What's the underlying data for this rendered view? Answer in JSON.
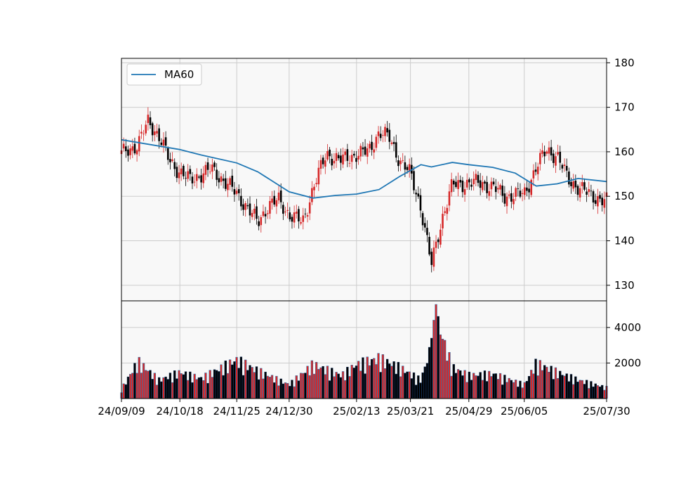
{
  "chart_data": {
    "type": "candlestick",
    "legend": {
      "label": "MA60",
      "placement": "upper-left"
    },
    "grid": true,
    "price_axis": {
      "side": "right",
      "ylim": [
        126.5,
        181
      ],
      "ticks": [
        130,
        140,
        150,
        160,
        170,
        180
      ],
      "tick_labels": [
        "130",
        "140",
        "150",
        "160",
        "170",
        "180"
      ]
    },
    "volume_axis": {
      "side": "right",
      "ylim": [
        0,
        5500
      ],
      "ticks": [
        2000,
        4000
      ],
      "tick_labels": [
        "2000",
        "4000"
      ]
    },
    "x_tick_labels": [
      "24/09/09",
      "24/10/18",
      "24/11/25",
      "24/12/30",
      "25/02/13",
      "25/03/21",
      "25/04/29",
      "25/06/05",
      "25/07/30"
    ],
    "close_series": [
      [
        "24/09/09",
        159.5
      ],
      [
        "24/09/13",
        160.5
      ],
      [
        "24/09/20",
        161.5
      ],
      [
        "24/09/27",
        167.0
      ],
      [
        "24/10/04",
        163.5
      ],
      [
        "24/10/11",
        158.0
      ],
      [
        "24/10/18",
        155.5
      ],
      [
        "24/10/25",
        153.5
      ],
      [
        "24/11/01",
        155.0
      ],
      [
        "24/11/08",
        156.0
      ],
      [
        "24/11/15",
        154.0
      ],
      [
        "24/11/25",
        150.5
      ],
      [
        "24/12/02",
        147.5
      ],
      [
        "24/12/09",
        144.0
      ],
      [
        "24/12/16",
        148.0
      ],
      [
        "24/12/23",
        149.0
      ],
      [
        "24/12/30",
        146.0
      ],
      [
        "25/01/08",
        144.0
      ],
      [
        "25/01/15",
        152.0
      ],
      [
        "25/01/24",
        159.5
      ],
      [
        "25/02/03",
        158.0
      ],
      [
        "25/02/13",
        159.5
      ],
      [
        "25/02/21",
        160.0
      ],
      [
        "25/02/28",
        164.5
      ],
      [
        "25/03/07",
        163.0
      ],
      [
        "25/03/14",
        158.0
      ],
      [
        "25/03/21",
        155.0
      ],
      [
        "25/03/28",
        147.5
      ],
      [
        "25/04/04",
        134.5
      ],
      [
        "25/04/11",
        145.0
      ],
      [
        "25/04/18",
        152.5
      ],
      [
        "25/04/29",
        153.0
      ],
      [
        "25/05/07",
        153.0
      ],
      [
        "25/05/15",
        152.0
      ],
      [
        "25/05/23",
        150.0
      ],
      [
        "25/06/05",
        150.5
      ],
      [
        "25/06/13",
        156.5
      ],
      [
        "25/06/20",
        160.5
      ],
      [
        "25/06/27",
        159.0
      ],
      [
        "25/07/04",
        154.0
      ],
      [
        "25/07/11",
        152.0
      ],
      [
        "25/07/18",
        150.5
      ],
      [
        "25/07/30",
        148.8
      ]
    ],
    "ma60": [
      [
        "24/09/09",
        162.7
      ],
      [
        "24/10/18",
        160.5
      ],
      [
        "24/11/01",
        159.3
      ],
      [
        "24/11/25",
        157.5
      ],
      [
        "24/12/09",
        155.5
      ],
      [
        "24/12/30",
        151.0
      ],
      [
        "25/01/15",
        149.6
      ],
      [
        "25/01/30",
        150.2
      ],
      [
        "25/02/13",
        150.5
      ],
      [
        "25/02/28",
        151.5
      ],
      [
        "25/03/14",
        154.5
      ],
      [
        "25/03/28",
        157.1
      ],
      [
        "25/04/04",
        156.6
      ],
      [
        "25/04/18",
        157.6
      ],
      [
        "25/04/29",
        157.1
      ],
      [
        "25/05/15",
        156.5
      ],
      [
        "25/05/30",
        155.2
      ],
      [
        "25/06/13",
        152.3
      ],
      [
        "25/06/27",
        152.8
      ],
      [
        "25/07/11",
        154.0
      ],
      [
        "25/07/30",
        153.3
      ]
    ],
    "volume_bars": [
      [
        "24/09/09",
        600
      ],
      [
        "24/09/20",
        2400
      ],
      [
        "24/10/04",
        1200
      ],
      [
        "24/10/18",
        1700
      ],
      [
        "24/11/01",
        1300
      ],
      [
        "24/11/25",
        2500
      ],
      [
        "24/12/09",
        1800
      ],
      [
        "24/12/30",
        900
      ],
      [
        "25/01/15",
        2200
      ],
      [
        "25/02/03",
        1500
      ],
      [
        "25/02/13",
        2200
      ],
      [
        "25/02/28",
        2600
      ],
      [
        "25/03/14",
        2000
      ],
      [
        "25/03/28",
        1200
      ],
      [
        "25/04/04",
        3400
      ],
      [
        "25/04/07",
        5300
      ],
      [
        "25/04/18",
        2000
      ],
      [
        "25/04/29",
        1500
      ],
      [
        "25/05/15",
        1600
      ],
      [
        "25/06/05",
        900
      ],
      [
        "25/06/13",
        2300
      ],
      [
        "25/06/27",
        1700
      ],
      [
        "25/07/11",
        1200
      ],
      [
        "25/07/30",
        700
      ]
    ],
    "colors": {
      "up": "#d62728",
      "down": "#000000",
      "ma60": "#1f77b4",
      "volume_up_edge": "#1f77b4",
      "volume_down": "#0a2a55",
      "background": "#f8f8f8",
      "grid": "#cccccc"
    }
  }
}
